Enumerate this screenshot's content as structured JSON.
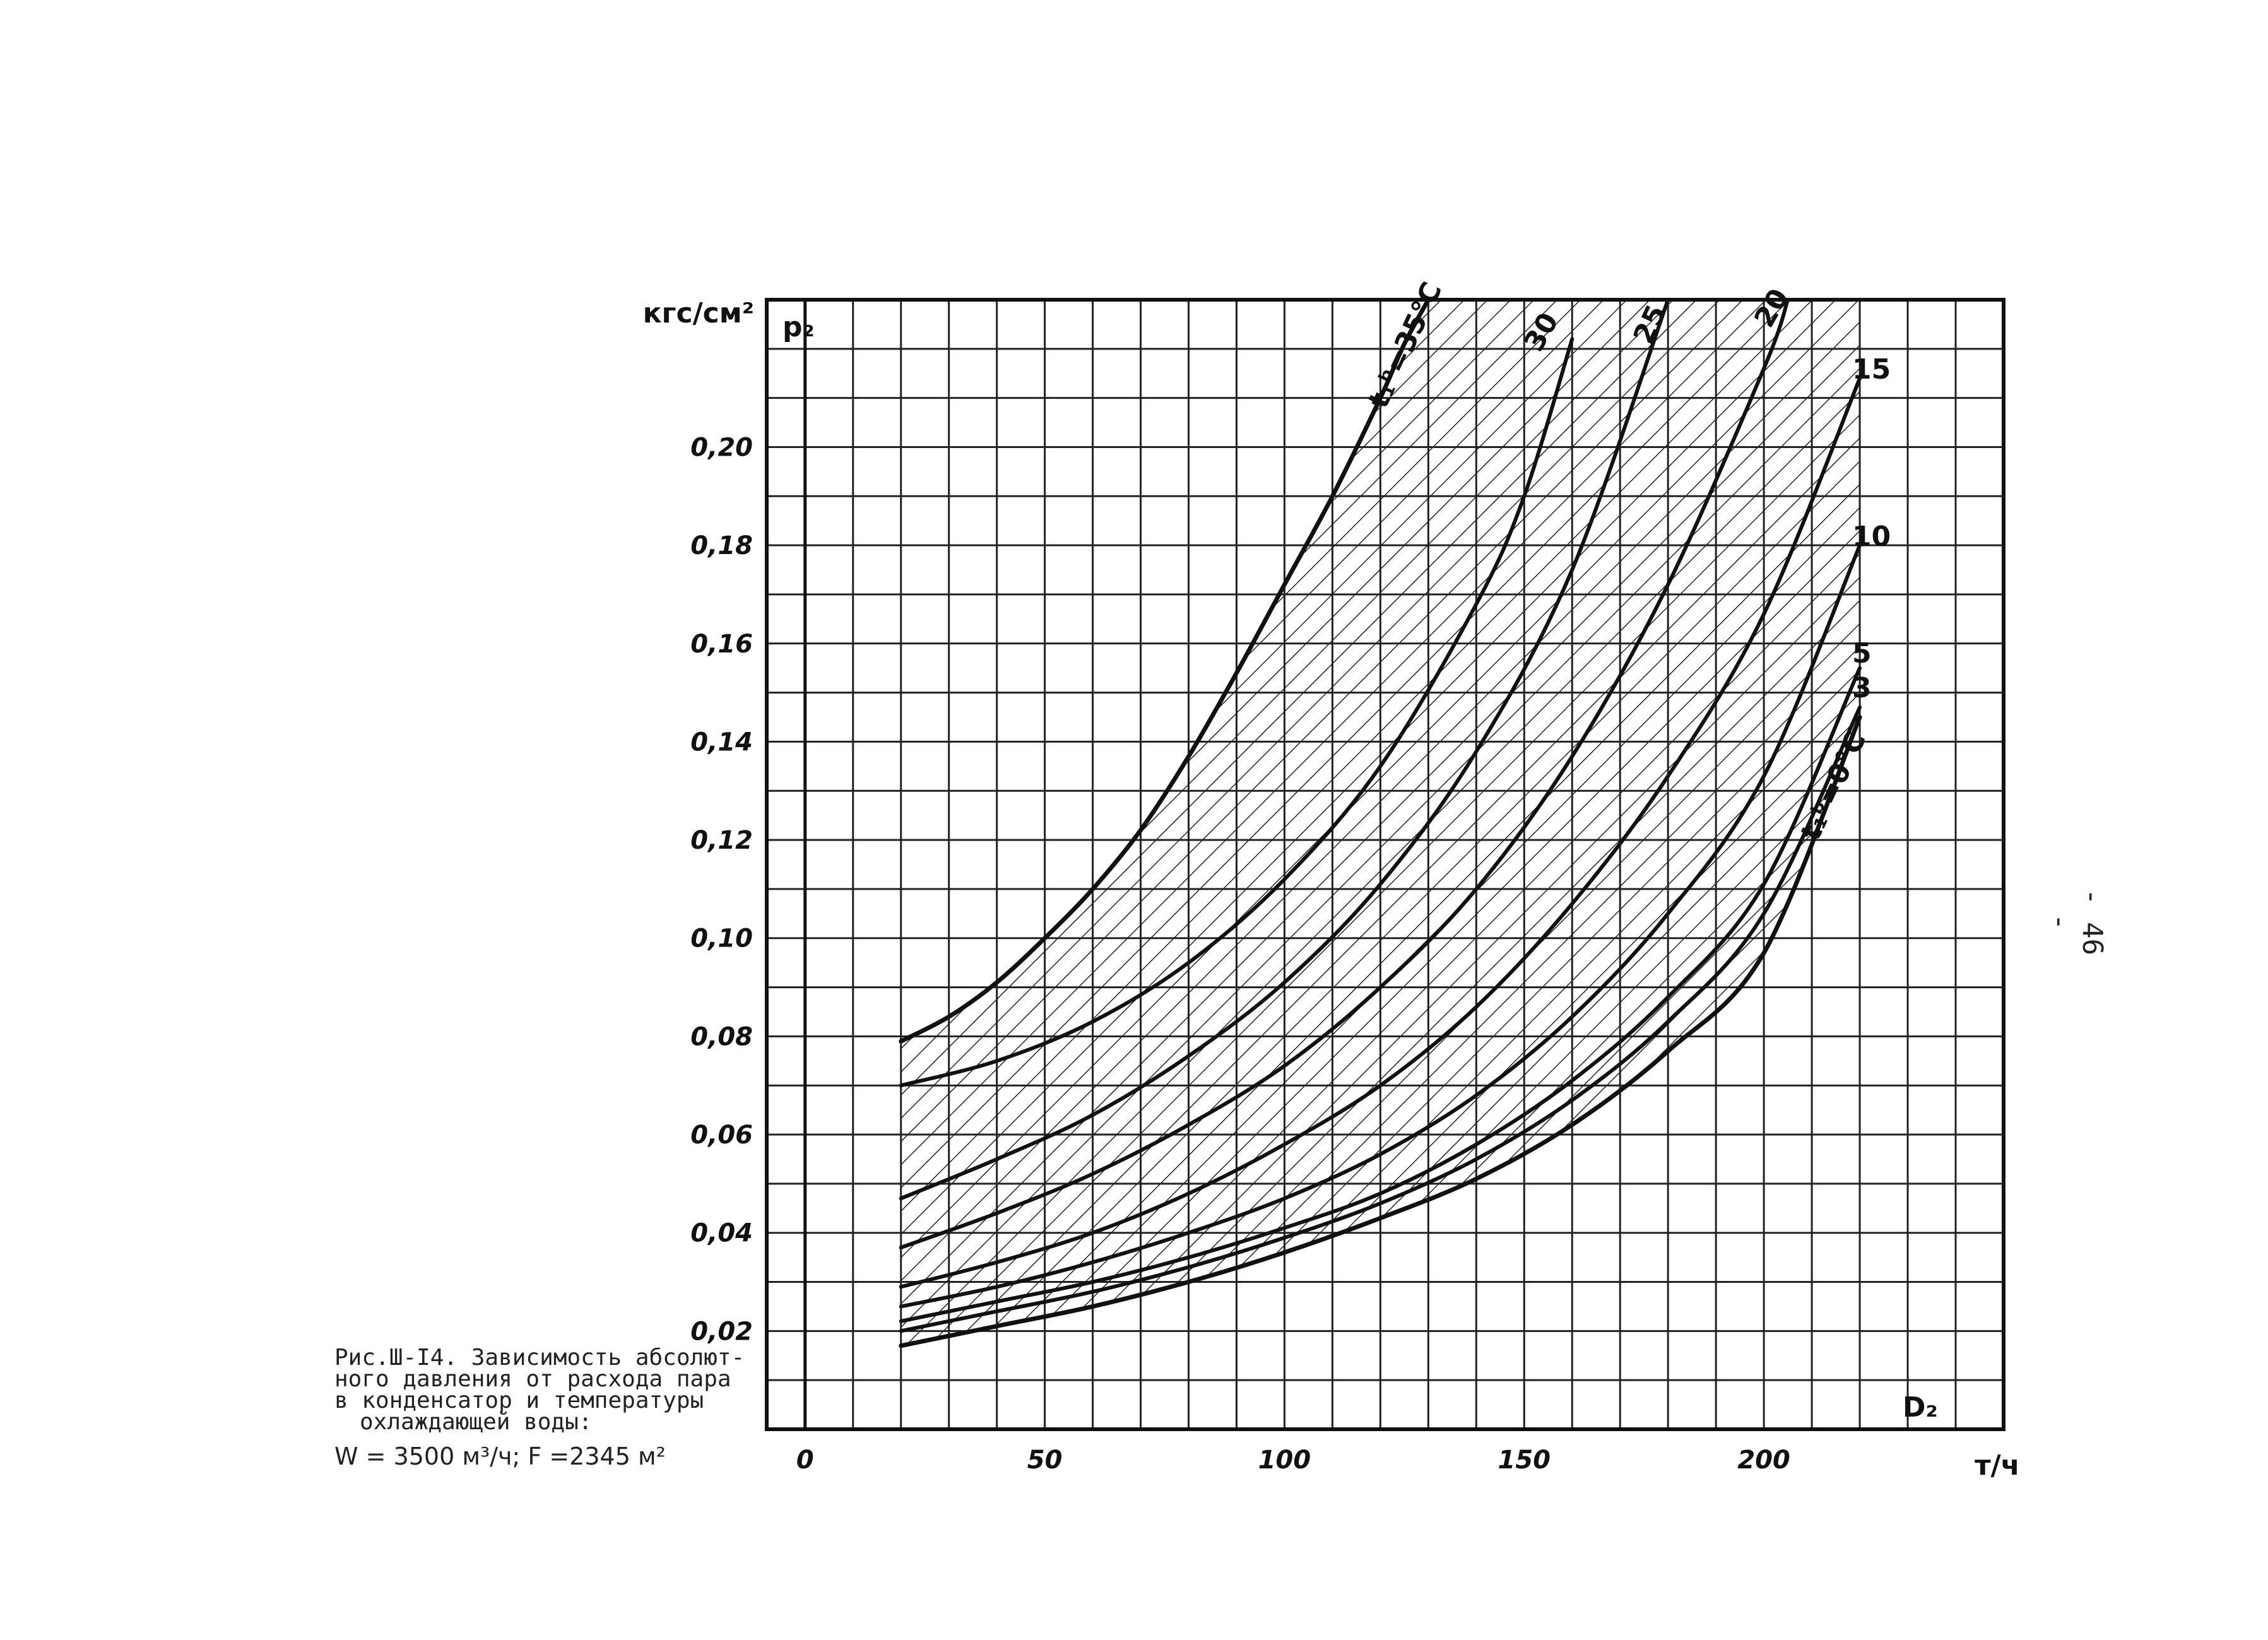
{
  "chart_data": {
    "type": "line",
    "ylabel_unit": "кгс/см²",
    "ylabel": "p₂",
    "xlabel": "D₂",
    "xlabel_unit": "т/ч",
    "xlim": [
      -8,
      250
    ],
    "ylim": [
      0,
      0.23
    ],
    "x_ticks": [
      0,
      50,
      100,
      150,
      200
    ],
    "x_tick_labels": [
      "0",
      "50",
      "100",
      "150",
      "200"
    ],
    "y_ticks": [
      0.02,
      0.04,
      0.06,
      0.08,
      0.1,
      0.12,
      0.14,
      0.16,
      0.18,
      0.2
    ],
    "y_tick_labels": [
      "0,02",
      "0,04",
      "0,06",
      "0,08",
      "0,10",
      "0,12",
      "0,14",
      "0,16",
      "0,18",
      "0,20"
    ],
    "grid": true,
    "x_grid_step": 10,
    "y_grid_step": 0.01,
    "hatched_region": "between 0°C and 35°C curves",
    "series": [
      {
        "name": "t₁ᵇ=35°C",
        "x": [
          20,
          30,
          40,
          50,
          60,
          70,
          80,
          90,
          100,
          110,
          120,
          125,
          130
        ],
        "y": [
          0.079,
          0.084,
          0.091,
          0.1,
          0.11,
          0.122,
          0.137,
          0.154,
          0.172,
          0.19,
          0.21,
          0.221,
          0.23
        ]
      },
      {
        "name": "30",
        "x": [
          20,
          40,
          60,
          80,
          100,
          120,
          140,
          150,
          160
        ],
        "y": [
          0.07,
          0.075,
          0.083,
          0.095,
          0.112,
          0.135,
          0.168,
          0.19,
          0.222
        ]
      },
      {
        "name": "25",
        "x": [
          20,
          40,
          60,
          80,
          100,
          120,
          140,
          160,
          180
        ],
        "y": [
          0.047,
          0.055,
          0.064,
          0.076,
          0.091,
          0.111,
          0.138,
          0.175,
          0.23
        ]
      },
      {
        "name": "20",
        "x": [
          20,
          40,
          60,
          80,
          100,
          120,
          140,
          160,
          180,
          200,
          205
        ],
        "y": [
          0.037,
          0.044,
          0.052,
          0.062,
          0.074,
          0.09,
          0.11,
          0.137,
          0.172,
          0.216,
          0.23
        ]
      },
      {
        "name": "15",
        "x": [
          20,
          40,
          60,
          80,
          100,
          120,
          140,
          160,
          180,
          200,
          220
        ],
        "y": [
          0.029,
          0.034,
          0.04,
          0.048,
          0.058,
          0.07,
          0.086,
          0.107,
          0.133,
          0.166,
          0.214
        ]
      },
      {
        "name": "10",
        "x": [
          20,
          40,
          60,
          80,
          100,
          120,
          140,
          160,
          180,
          200,
          220
        ],
        "y": [
          0.025,
          0.029,
          0.034,
          0.04,
          0.047,
          0.056,
          0.068,
          0.084,
          0.105,
          0.133,
          0.18
        ]
      },
      {
        "name": "5",
        "x": [
          20,
          40,
          60,
          80,
          100,
          120,
          140,
          160,
          180,
          200,
          220
        ],
        "y": [
          0.022,
          0.026,
          0.03,
          0.035,
          0.041,
          0.048,
          0.058,
          0.071,
          0.088,
          0.111,
          0.155
        ]
      },
      {
        "name": "3",
        "x": [
          20,
          40,
          60,
          80,
          100,
          120,
          140,
          160,
          180,
          200,
          220
        ],
        "y": [
          0.02,
          0.024,
          0.028,
          0.033,
          0.039,
          0.046,
          0.055,
          0.067,
          0.083,
          0.105,
          0.147
        ]
      },
      {
        "name": "t₁ᵇ=0°C",
        "x": [
          20,
          40,
          60,
          80,
          100,
          120,
          140,
          160,
          180,
          200,
          220
        ],
        "y": [
          0.017,
          0.021,
          0.025,
          0.03,
          0.036,
          0.043,
          0.051,
          0.062,
          0.077,
          0.097,
          0.145
        ]
      }
    ]
  },
  "caption": {
    "line1": "Рис.Ш-I4. Зависимость абсолют-",
    "line2": "ного давления от расхода пара",
    "line3": "в конденсатор и температуры",
    "line4": "охлаждающей воды:",
    "params": "W = 3500 м³/ч;  F =2345 м²"
  },
  "page_number": "- 46 -"
}
